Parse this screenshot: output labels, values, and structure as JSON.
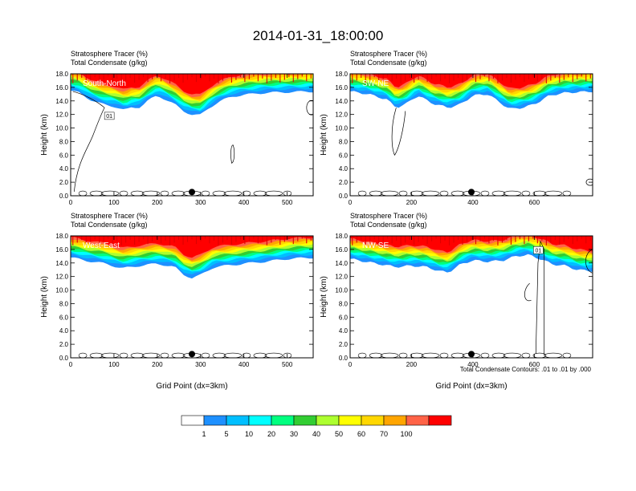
{
  "title": "2014-01-31_18:00:00",
  "footnote": "Total Condensate Contours: .01 to .01 by .000",
  "chart_data": [
    {
      "type": "heatmap",
      "id": "south-north",
      "label": "South-North",
      "title_lines": [
        "Stratosphere Tracer   (%)",
        "Total Condensate   (g/kg)"
      ],
      "ylabel": "Height (km)",
      "xlabel": "",
      "xlim": [
        0,
        560
      ],
      "ylim": [
        0,
        18
      ],
      "xticks": [
        0,
        100,
        200,
        300,
        400,
        500
      ],
      "yticks": [
        0,
        2,
        4,
        6,
        8,
        10,
        12,
        14,
        16,
        18
      ],
      "marker_x": 280,
      "contour_label": "01",
      "contour_label_x": 80,
      "contour_label_y": 11.5,
      "base": [
        [
          0,
          15.5
        ],
        [
          20,
          15.2
        ],
        [
          45,
          14.2
        ],
        [
          60,
          13.8
        ],
        [
          80,
          13.4
        ],
        [
          100,
          13.2
        ],
        [
          125,
          12.6
        ],
        [
          140,
          13.0
        ],
        [
          160,
          13.1
        ],
        [
          180,
          14.1
        ],
        [
          200,
          14.8
        ],
        [
          220,
          14.2
        ],
        [
          240,
          13.5
        ],
        [
          260,
          12.5
        ],
        [
          280,
          12.0
        ],
        [
          300,
          11.9
        ],
        [
          320,
          13.0
        ],
        [
          340,
          13.8
        ],
        [
          370,
          14.6
        ],
        [
          400,
          14.9
        ],
        [
          450,
          15.2
        ],
        [
          500,
          15.3
        ],
        [
          560,
          15.4
        ]
      ]
    },
    {
      "type": "heatmap",
      "id": "sw-ne",
      "label": "SW-NE",
      "title_lines": [
        "Stratosphere Tracer   (%)",
        "Total Condensate   (g/kg)"
      ],
      "ylabel": "Height (km)",
      "xlabel": "",
      "xlim": [
        0,
        790
      ],
      "ylim": [
        0,
        18
      ],
      "xticks": [
        0,
        200,
        400,
        600
      ],
      "yticks": [
        0,
        2,
        4,
        6,
        8,
        10,
        12,
        14,
        16,
        18
      ],
      "marker_x": 395,
      "contour_label": "",
      "base": [
        [
          0,
          15.4
        ],
        [
          60,
          15.0
        ],
        [
          120,
          14.2
        ],
        [
          150,
          13.0
        ],
        [
          180,
          13.5
        ],
        [
          220,
          14.8
        ],
        [
          270,
          13.6
        ],
        [
          320,
          13.0
        ],
        [
          360,
          13.5
        ],
        [
          400,
          14.8
        ],
        [
          450,
          15.0
        ],
        [
          480,
          14.0
        ],
        [
          520,
          12.8
        ],
        [
          560,
          13.0
        ],
        [
          600,
          13.5
        ],
        [
          650,
          14.8
        ],
        [
          700,
          15.2
        ],
        [
          790,
          15.4
        ]
      ]
    },
    {
      "type": "heatmap",
      "id": "west-east",
      "label": "West-East",
      "title_lines": [
        "Stratosphere Tracer   (%)",
        "Total Condensate   (g/kg)"
      ],
      "ylabel": "Height (km)",
      "xlabel": "Grid Point (dx=3km)",
      "xlim": [
        0,
        560
      ],
      "ylim": [
        0,
        18
      ],
      "xticks": [
        0,
        100,
        200,
        300,
        400,
        500
      ],
      "yticks": [
        0,
        2,
        4,
        6,
        8,
        10,
        12,
        14,
        16,
        18
      ],
      "marker_x": 280,
      "contour_label": "",
      "base": [
        [
          0,
          14.8
        ],
        [
          40,
          14.3
        ],
        [
          80,
          13.9
        ],
        [
          120,
          13.2
        ],
        [
          160,
          13.6
        ],
        [
          200,
          13.9
        ],
        [
          240,
          13.4
        ],
        [
          260,
          12.3
        ],
        [
          280,
          11.8
        ],
        [
          300,
          12.2
        ],
        [
          330,
          13.4
        ],
        [
          360,
          13.6
        ],
        [
          400,
          13.9
        ],
        [
          450,
          14.2
        ],
        [
          500,
          14.6
        ],
        [
          560,
          14.8
        ]
      ]
    },
    {
      "type": "heatmap",
      "id": "nw-se",
      "label": "NW-SE",
      "title_lines": [
        "Stratosphere Tracer   (%)",
        "Total Condensate   (g/kg)"
      ],
      "ylabel": "Height (km)",
      "xlabel": "Grid Point (dx=3km)",
      "xlim": [
        0,
        790
      ],
      "ylim": [
        0,
        18
      ],
      "xticks": [
        0,
        200,
        400,
        600
      ],
      "yticks": [
        0,
        2,
        4,
        6,
        8,
        10,
        12,
        14,
        16,
        18
      ],
      "marker_x": 395,
      "contour_label": "01",
      "contour_label_x": 600,
      "contour_label_y": 15.6,
      "base": [
        [
          0,
          14.6
        ],
        [
          50,
          14.2
        ],
        [
          100,
          13.8
        ],
        [
          150,
          13.4
        ],
        [
          200,
          13.6
        ],
        [
          250,
          13.4
        ],
        [
          290,
          12.8
        ],
        [
          320,
          12.6
        ],
        [
          360,
          13.8
        ],
        [
          400,
          14.4
        ],
        [
          450,
          14.2
        ],
        [
          500,
          14.4
        ],
        [
          540,
          15.0
        ],
        [
          580,
          15.2
        ],
        [
          620,
          14.6
        ],
        [
          660,
          13.8
        ],
        [
          700,
          13.6
        ],
        [
          740,
          13.0
        ],
        [
          790,
          12.8
        ]
      ]
    }
  ],
  "colorbar": {
    "colors": [
      "#ffffff",
      "#1e90ff",
      "#00bfff",
      "#00ffff",
      "#00ff7f",
      "#32cd32",
      "#adff2f",
      "#ffff00",
      "#ffd700",
      "#ffa500",
      "#ff6347",
      "#ff0000"
    ],
    "labels": [
      "1",
      "5",
      "10",
      "20",
      "30",
      "40",
      "50",
      "60",
      "70",
      "100"
    ]
  }
}
